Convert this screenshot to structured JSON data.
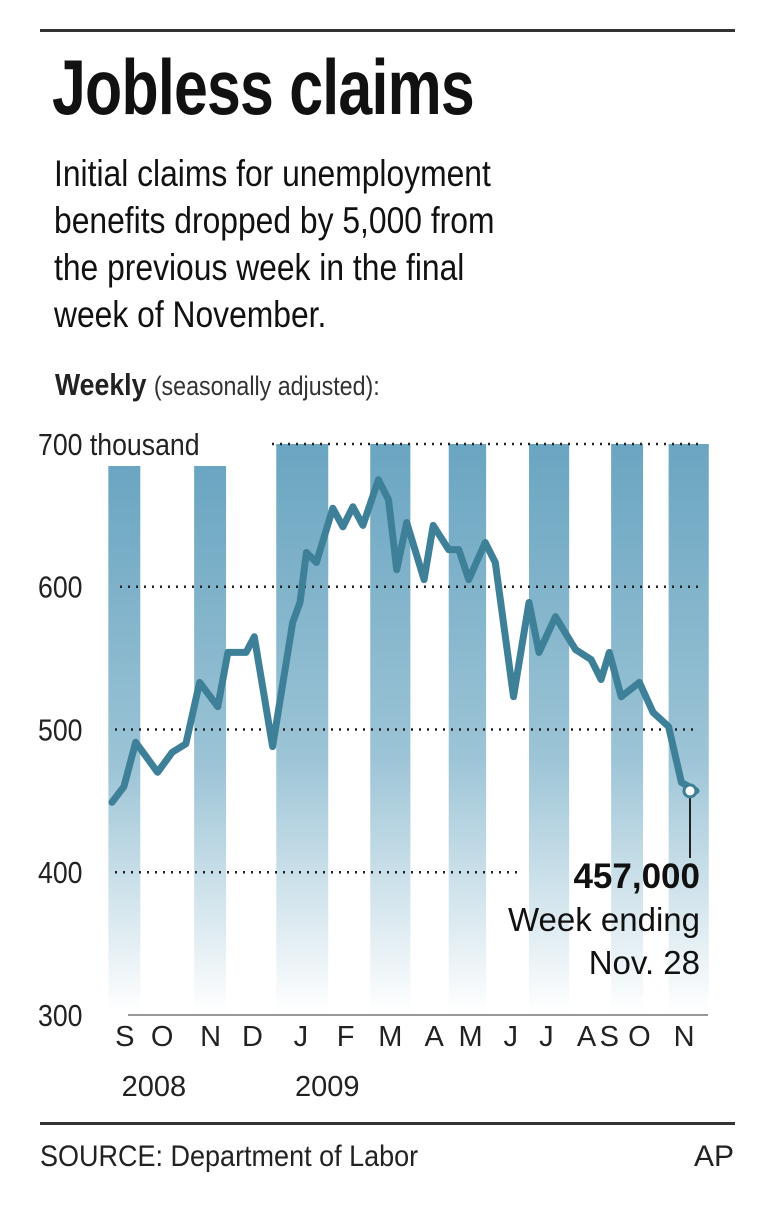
{
  "header": {
    "title": "Jobless claims",
    "description_lines": [
      "Initial claims for unemployment",
      "benefits dropped by 5,000 from",
      "the previous week in the final",
      "week of November."
    ],
    "subhead_bold": "Weekly",
    "subhead_note": "(seasonally adjusted):"
  },
  "annotation": {
    "value": "457,000",
    "line1": "Week ending",
    "line2": "Nov. 28"
  },
  "footer": {
    "source": "SOURCE: Department of Labor",
    "credit": "AP"
  },
  "colors": {
    "line": "#3f8099",
    "bar_top": "#6aa5c1",
    "grid": "#222222",
    "rule": "#333333"
  },
  "chart_data": {
    "type": "line",
    "title": "Jobless claims",
    "ylabel": "Weekly initial claims (thousands, seasonally adjusted)",
    "ylim": [
      300,
      700
    ],
    "y_ticks": [
      {
        "value": 700,
        "label": "700 thousand"
      },
      {
        "value": 600,
        "label": "600"
      },
      {
        "value": 500,
        "label": "500"
      },
      {
        "value": 400,
        "label": "400"
      },
      {
        "value": 300,
        "label": "300"
      }
    ],
    "x_unit": "weeks since early Sept. 2008",
    "xlim": [
      0,
      64
    ],
    "x_ticks": [
      {
        "week": 1.4,
        "label": "S"
      },
      {
        "week": 5.5,
        "label": "O"
      },
      {
        "week": 10.8,
        "label": "N"
      },
      {
        "week": 15.4,
        "label": "D"
      },
      {
        "week": 20.7,
        "label": "J"
      },
      {
        "week": 25.6,
        "label": "F"
      },
      {
        "week": 30.5,
        "label": "M"
      },
      {
        "week": 35.3,
        "label": "A"
      },
      {
        "week": 39.3,
        "label": "M"
      },
      {
        "week": 43.7,
        "label": "J"
      },
      {
        "week": 47.6,
        "label": "J"
      },
      {
        "week": 52,
        "label": "A"
      },
      {
        "week": 54.5,
        "label": "S"
      },
      {
        "week": 57.8,
        "label": "O"
      },
      {
        "week": 62.7,
        "label": "N"
      }
    ],
    "year_labels": [
      {
        "week": 3.5,
        "label": "2008"
      },
      {
        "week": 22.5,
        "label": "2009"
      }
    ],
    "shaded_months": [
      [
        -0.4,
        3.1
      ],
      [
        9,
        12.5
      ],
      [
        18,
        23.7
      ],
      [
        28.3,
        32.7
      ],
      [
        36.9,
        41
      ],
      [
        45.7,
        50.1
      ],
      [
        54.7,
        58.2
      ],
      [
        61,
        65.4
      ]
    ],
    "series": [
      {
        "name": "Initial jobless claims",
        "points": [
          [
            0,
            449
          ],
          [
            1.3,
            460
          ],
          [
            2.6,
            491
          ],
          [
            5,
            470
          ],
          [
            6.6,
            484
          ],
          [
            8.1,
            490
          ],
          [
            9.6,
            533
          ],
          [
            11.6,
            516
          ],
          [
            12.7,
            554
          ],
          [
            14.7,
            554
          ],
          [
            15.6,
            565
          ],
          [
            17.6,
            488
          ],
          [
            19.8,
            575
          ],
          [
            20.6,
            589
          ],
          [
            21.3,
            624
          ],
          [
            22.4,
            617
          ],
          [
            24.2,
            655
          ],
          [
            25.3,
            642
          ],
          [
            26.4,
            656
          ],
          [
            27.5,
            643
          ],
          [
            29.2,
            675
          ],
          [
            30.3,
            661
          ],
          [
            31.2,
            612
          ],
          [
            32.3,
            645
          ],
          [
            34.2,
            605
          ],
          [
            35.2,
            643
          ],
          [
            36.9,
            626
          ],
          [
            38,
            626
          ],
          [
            39.1,
            605
          ],
          [
            40.9,
            631
          ],
          [
            42,
            617
          ],
          [
            44,
            523
          ],
          [
            45.7,
            589
          ],
          [
            46.8,
            554
          ],
          [
            48.6,
            579
          ],
          [
            50.8,
            556
          ],
          [
            52.5,
            549
          ],
          [
            53.6,
            535
          ],
          [
            54.5,
            554
          ],
          [
            55.8,
            523
          ],
          [
            57.8,
            533
          ],
          [
            59.3,
            512
          ],
          [
            61,
            502
          ],
          [
            62.4,
            463
          ],
          [
            64,
            457
          ]
        ]
      }
    ],
    "highlight": {
      "week": 64,
      "value": 457,
      "label": "457,000"
    },
    "grid": true,
    "legend": "none"
  }
}
